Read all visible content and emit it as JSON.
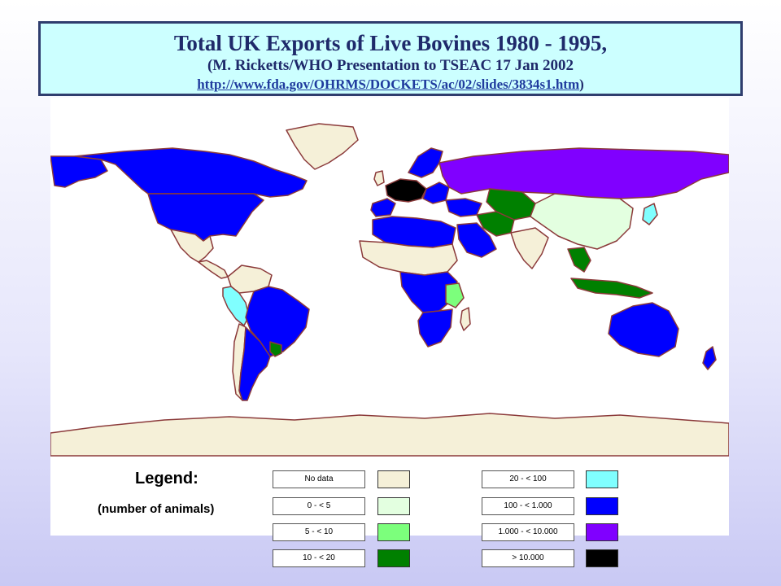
{
  "title": {
    "main": "Total UK Exports of Live Bovines 1980 - 1995,",
    "sub": "(M. Ricketts/WHO Presentation to TSEAC 17 Jan 2002",
    "url": "http://www.fda.gov/OHRMS/DOCKETS/ac/02/slides/3834s1.htm",
    "close_paren": ")"
  },
  "legend": {
    "title": "Legend:",
    "subtitle": "(number of animals)",
    "items": [
      {
        "label": "No data",
        "color": "#f5f0d8"
      },
      {
        "label": "0 - < 5",
        "color": "#e3ffe0"
      },
      {
        "label": "5 - < 10",
        "color": "#7cff7c"
      },
      {
        "label": "10 - < 20",
        "color": "#008000"
      },
      {
        "label": "20 - < 100",
        "color": "#80ffff"
      },
      {
        "label": "100 - < 1.000",
        "color": "#0000ff"
      },
      {
        "label": "1.000 - < 10.000",
        "color": "#8000ff"
      },
      {
        "label": "> 10.000",
        "color": "#000000"
      }
    ]
  },
  "map": {
    "ocean_color": "#ffffff",
    "border_color": "#8b3a3a",
    "regions": [
      {
        "name": "Canada",
        "category": "100 - < 1.000"
      },
      {
        "name": "United States",
        "category": "100 - < 1.000"
      },
      {
        "name": "Greenland",
        "category": "No data"
      },
      {
        "name": "Mexico",
        "category": "No data"
      },
      {
        "name": "Central America",
        "category": "No data"
      },
      {
        "name": "Colombia",
        "category": "No data"
      },
      {
        "name": "Ecuador",
        "category": "20 - < 100"
      },
      {
        "name": "Peru",
        "category": "20 - < 100"
      },
      {
        "name": "Brazil",
        "category": "100 - < 1.000"
      },
      {
        "name": "Chile",
        "category": "No data"
      },
      {
        "name": "Argentina",
        "category": "100 - < 1.000"
      },
      {
        "name": "Uruguay",
        "category": "10 - < 20"
      },
      {
        "name": "Antarctica",
        "category": "No data"
      },
      {
        "name": "Western Europe",
        "category": "> 10.000"
      },
      {
        "name": "Scandinavia",
        "category": "100 - < 1.000"
      },
      {
        "name": "Russia",
        "category": "1.000 - < 10.000"
      },
      {
        "name": "Kazakhstan",
        "category": "10 - < 20"
      },
      {
        "name": "China",
        "category": "0 - < 5"
      },
      {
        "name": "Japan",
        "category": "20 - < 100"
      },
      {
        "name": "North Africa",
        "category": "100 - < 1.000"
      },
      {
        "name": "Sahel",
        "category": "No data"
      },
      {
        "name": "Arabia",
        "category": "100 - < 1.000"
      },
      {
        "name": "Iran",
        "category": "10 - < 20"
      },
      {
        "name": "India",
        "category": "No data"
      },
      {
        "name": "Central Africa",
        "category": "100 - < 1.000"
      },
      {
        "name": "Tanzania",
        "category": "5 - < 10"
      },
      {
        "name": "Southern Africa",
        "category": "100 - < 1.000"
      },
      {
        "name": "Southeast Asia",
        "category": "10 - < 20"
      },
      {
        "name": "Indonesia",
        "category": "10 - < 20"
      },
      {
        "name": "Australia",
        "category": "100 - < 1.000"
      },
      {
        "name": "New Zealand",
        "category": "100 - < 1.000"
      }
    ]
  }
}
